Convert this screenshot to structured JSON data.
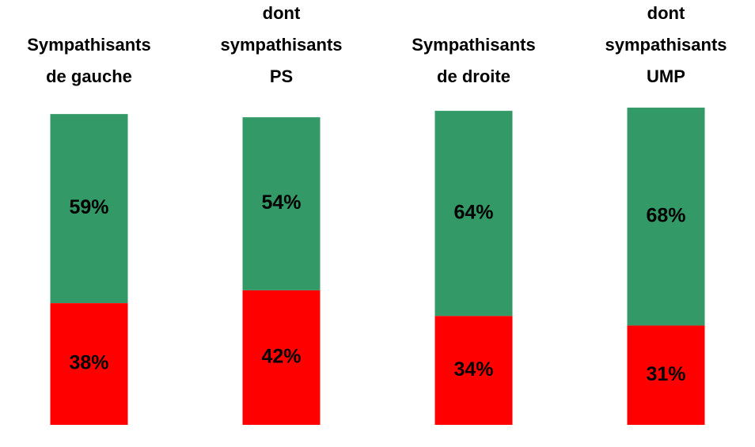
{
  "chart_data": {
    "type": "stacked_bar",
    "categories": [
      [
        "Sympathisants",
        "de gauche"
      ],
      [
        "dont",
        "sympathisants",
        "PS"
      ],
      [
        "Sympathisants",
        "de droite"
      ],
      [
        "dont",
        "sympathisants",
        "UMP"
      ]
    ],
    "series": [
      {
        "color": "#ff0000",
        "values": [
          38,
          42,
          34,
          31
        ],
        "value_labels": [
          "38%",
          "42%",
          "34%",
          "31%"
        ]
      },
      {
        "color": "#339966",
        "values": [
          59,
          54,
          64,
          68
        ],
        "value_labels": [
          "59%",
          "54%",
          "64%",
          "68%"
        ]
      }
    ],
    "ylim": [
      0,
      100
    ]
  }
}
